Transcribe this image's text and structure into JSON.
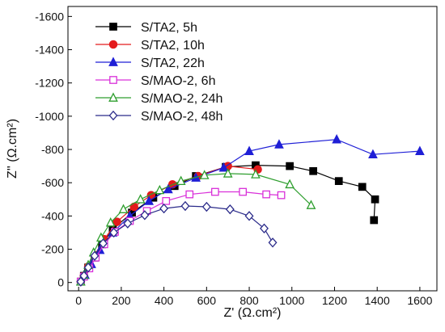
{
  "chart_data": {
    "type": "line",
    "xlabel": "Z' (Ω.cm²)",
    "ylabel": "Z'' (Ω.cm²)",
    "xlim": [
      -50,
      1680
    ],
    "ylim": [
      50,
      -1660
    ],
    "x_ticks": [
      0,
      200,
      400,
      600,
      800,
      1000,
      1200,
      1400,
      1600
    ],
    "y_ticks": [
      0,
      -200,
      -400,
      -600,
      -800,
      -1000,
      -1200,
      -1400,
      -1600
    ],
    "x_tick_labels": [
      "0",
      "200",
      "400",
      "600",
      "800",
      "1000",
      "1200",
      "1400",
      "1600"
    ],
    "y_tick_labels": [
      "0",
      "-200",
      "-400",
      "-600",
      "-800",
      "-1000",
      "-1200",
      "-1400",
      "-1600"
    ],
    "legend_position": "top-left",
    "series": [
      {
        "name": "S/TA2, 5h",
        "color": "#000000",
        "marker": "square",
        "filled": true,
        "x": [
          10,
          25,
          45,
          75,
          110,
          160,
          250,
          350,
          450,
          550,
          690,
          830,
          990,
          1100,
          1220,
          1330,
          1390,
          1385
        ],
        "y": [
          -5,
          -40,
          -90,
          -150,
          -230,
          -320,
          -420,
          -510,
          -580,
          -640,
          -695,
          -705,
          -700,
          -670,
          -610,
          -575,
          -500,
          -375
        ]
      },
      {
        "name": "S/TA2, 10h",
        "color": "#e41a1c",
        "marker": "circle",
        "filled": true,
        "x": [
          10,
          25,
          45,
          75,
          120,
          180,
          260,
          340,
          440,
          560,
          700,
          840
        ],
        "y": [
          -5,
          -40,
          -95,
          -165,
          -260,
          -365,
          -455,
          -525,
          -590,
          -640,
          -700,
          -680
        ]
      },
      {
        "name": "S/TA2, 22h",
        "color": "#1f1fd6",
        "marker": "triangle",
        "filled": true,
        "x": [
          10,
          30,
          60,
          100,
          160,
          240,
          330,
          420,
          550,
          680,
          800,
          940,
          1210,
          1380,
          1600
        ],
        "y": [
          -5,
          -45,
          -110,
          -195,
          -300,
          -400,
          -490,
          -560,
          -630,
          -690,
          -790,
          -830,
          -860,
          -770,
          -790
        ]
      },
      {
        "name": "S/MAO-2, 6h",
        "color": "#d930d9",
        "marker": "square",
        "filled": false,
        "x": [
          10,
          25,
          50,
          80,
          120,
          170,
          240,
          320,
          410,
          520,
          640,
          770,
          880,
          950
        ],
        "y": [
          -5,
          -35,
          -85,
          -150,
          -230,
          -305,
          -370,
          -430,
          -490,
          -530,
          -545,
          -545,
          -530,
          -525
        ]
      },
      {
        "name": "S/MAO-2, 24h",
        "color": "#2e9e2e",
        "marker": "triangle",
        "filled": false,
        "x": [
          10,
          25,
          45,
          70,
          105,
          150,
          210,
          290,
          380,
          480,
          590,
          700,
          830,
          990,
          1090
        ],
        "y": [
          -5,
          -45,
          -105,
          -180,
          -270,
          -360,
          -440,
          -500,
          -555,
          -610,
          -645,
          -655,
          -650,
          -590,
          -465
        ]
      },
      {
        "name": "S/MAO-2, 48h",
        "color": "#2b2b8a",
        "marker": "diamond",
        "filled": false,
        "x": [
          10,
          25,
          45,
          75,
          115,
          165,
          230,
          310,
          400,
          500,
          600,
          710,
          800,
          870,
          910
        ],
        "y": [
          -5,
          -40,
          -90,
          -160,
          -235,
          -300,
          -355,
          -405,
          -445,
          -460,
          -455,
          -440,
          -400,
          -325,
          -240
        ]
      }
    ]
  }
}
